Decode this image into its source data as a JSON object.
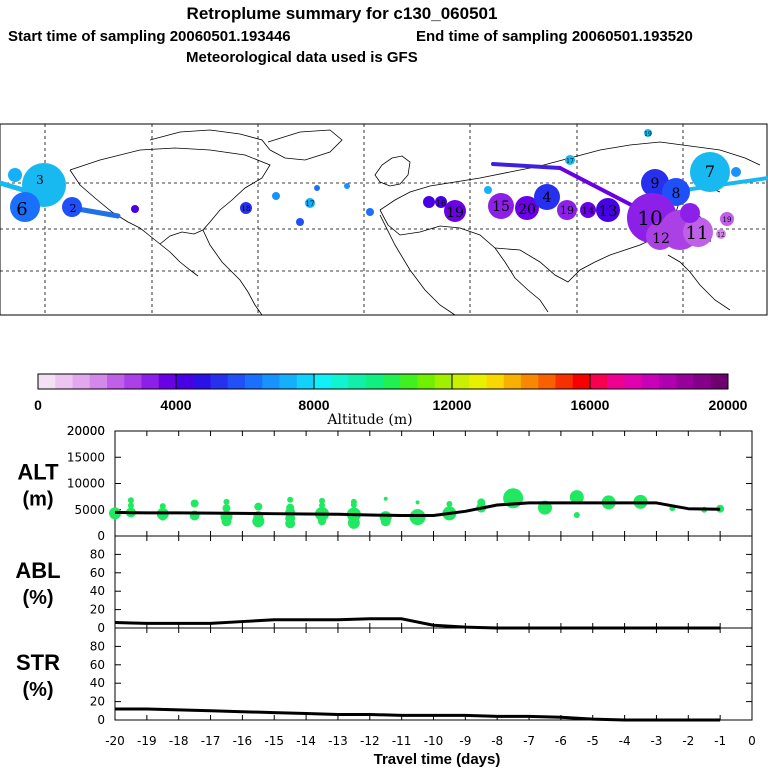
{
  "header": {
    "title": "Retroplume summary for c130_060501",
    "start_label": "Start time of sampling 20060501.193446",
    "end_label": "End time of sampling 20060501.193520",
    "met_label": "Meteorological data used is GFS"
  },
  "colorbar": {
    "ticks": [
      "0",
      "4000",
      "8000",
      "12000",
      "16000",
      "20000"
    ],
    "label": "Altitude (m)",
    "colors": [
      "#f4e0f4",
      "#ecc6f0",
      "#e2a8ee",
      "#d488ea",
      "#c060e8",
      "#aa40e6",
      "#8c20e8",
      "#6a00e6",
      "#4800e4",
      "#2c10e8",
      "#2830f0",
      "#2050f8",
      "#1a70fc",
      "#1892fc",
      "#14b0fc",
      "#10d2fc",
      "#10f0f8",
      "#10f4d0",
      "#10f0a8",
      "#10f080",
      "#20f050",
      "#40f020",
      "#70f000",
      "#a0f000",
      "#c8f000",
      "#e8f000",
      "#f8d800",
      "#f8b000",
      "#f88800",
      "#f86000",
      "#f83000",
      "#f80000",
      "#f80050",
      "#f00090",
      "#e000b0",
      "#c800b8",
      "#b000b0",
      "#98009c",
      "#840088",
      "#700070"
    ]
  },
  "map": {
    "labels": [
      {
        "n": "6",
        "t": "age-label"
      },
      {
        "n": "3",
        "t": "age-label"
      },
      {
        "n": "2",
        "t": "age-label"
      },
      {
        "n": "17",
        "t": "age-label"
      },
      {
        "n": "18",
        "t": "age-label"
      },
      {
        "n": "19",
        "t": "age-label"
      },
      {
        "n": "16",
        "t": "age-label"
      },
      {
        "n": "15",
        "t": "age-label"
      },
      {
        "n": "20",
        "t": "age-label"
      },
      {
        "n": "4",
        "t": "age-label"
      },
      {
        "n": "14",
        "t": "age-label"
      },
      {
        "n": "13",
        "t": "age-label"
      },
      {
        "n": "9",
        "t": "age-label"
      },
      {
        "n": "8",
        "t": "age-label"
      },
      {
        "n": "10",
        "t": "age-label"
      },
      {
        "n": "11",
        "t": "age-label"
      },
      {
        "n": "12",
        "t": "age-label"
      },
      {
        "n": "7",
        "t": "age-label"
      }
    ]
  },
  "chart_data": [
    {
      "type": "line",
      "panel": "ALT",
      "ylabel_line1": "ALT",
      "ylabel_line2": "(m)",
      "ylim": [
        0,
        20000
      ],
      "yticks": [
        "0",
        "5000",
        "10000",
        "15000",
        "20000"
      ],
      "x": [
        -20,
        -19,
        -18,
        -17,
        -16,
        -15,
        -14,
        -13,
        -12,
        -11,
        -10,
        -9,
        -8,
        -7,
        -6,
        -5,
        -4,
        -3,
        -2,
        -1
      ],
      "series": [
        {
          "name": "median altitude",
          "color": "#000000",
          "values": [
            4500,
            4400,
            4400,
            4350,
            4300,
            4250,
            4200,
            4150,
            4000,
            3900,
            3900,
            4700,
            5900,
            6300,
            6300,
            6300,
            6300,
            6300,
            5200,
            5100
          ]
        }
      ],
      "scatter": [
        {
          "x": -20,
          "y": 4300,
          "s": 6
        },
        {
          "x": -19.5,
          "y": 6800,
          "s": 3
        },
        {
          "x": -19.5,
          "y": 5800,
          "s": 3
        },
        {
          "x": -19.5,
          "y": 4500,
          "s": 5
        },
        {
          "x": -18.5,
          "y": 5700,
          "s": 3
        },
        {
          "x": -18.5,
          "y": 4200,
          "s": 6
        },
        {
          "x": -18.5,
          "y": 3500,
          "s": 3
        },
        {
          "x": -17.5,
          "y": 6200,
          "s": 4
        },
        {
          "x": -17.5,
          "y": 3900,
          "s": 5
        },
        {
          "x": -16.5,
          "y": 6500,
          "s": 3
        },
        {
          "x": -16.5,
          "y": 5300,
          "s": 4
        },
        {
          "x": -16.5,
          "y": 3700,
          "s": 6
        },
        {
          "x": -16.5,
          "y": 2800,
          "s": 5
        },
        {
          "x": -15.5,
          "y": 5600,
          "s": 4
        },
        {
          "x": -15.5,
          "y": 3800,
          "s": 5
        },
        {
          "x": -15.5,
          "y": 2800,
          "s": 6
        },
        {
          "x": -14.5,
          "y": 6900,
          "s": 3
        },
        {
          "x": -14.5,
          "y": 5400,
          "s": 4
        },
        {
          "x": -14.5,
          "y": 4500,
          "s": 5
        },
        {
          "x": -14.5,
          "y": 3400,
          "s": 5
        },
        {
          "x": -14.5,
          "y": 2400,
          "s": 5
        },
        {
          "x": -13.5,
          "y": 6700,
          "s": 3
        },
        {
          "x": -13.5,
          "y": 5800,
          "s": 3
        },
        {
          "x": -13.5,
          "y": 4200,
          "s": 7
        },
        {
          "x": -13.5,
          "y": 2800,
          "s": 4
        },
        {
          "x": -12.5,
          "y": 6500,
          "s": 3
        },
        {
          "x": -12.5,
          "y": 5900,
          "s": 3
        },
        {
          "x": -12.5,
          "y": 4100,
          "s": 7
        },
        {
          "x": -12.5,
          "y": 2500,
          "s": 6
        },
        {
          "x": -11.5,
          "y": 7100,
          "s": 2
        },
        {
          "x": -11.5,
          "y": 3600,
          "s": 6
        },
        {
          "x": -11.5,
          "y": 2800,
          "s": 5
        },
        {
          "x": -10.5,
          "y": 6400,
          "s": 2
        },
        {
          "x": -10.5,
          "y": 3600,
          "s": 8
        },
        {
          "x": -9.5,
          "y": 6100,
          "s": 3
        },
        {
          "x": -9.5,
          "y": 4300,
          "s": 7
        },
        {
          "x": -8.5,
          "y": 6400,
          "s": 4
        },
        {
          "x": -8.5,
          "y": 5400,
          "s": 5
        },
        {
          "x": -7.5,
          "y": 7200,
          "s": 10
        },
        {
          "x": -6.5,
          "y": 5400,
          "s": 7
        },
        {
          "x": -5.5,
          "y": 7400,
          "s": 7
        },
        {
          "x": -5.5,
          "y": 4000,
          "s": 3
        },
        {
          "x": -4.5,
          "y": 6400,
          "s": 7
        },
        {
          "x": -3.5,
          "y": 6500,
          "s": 7
        },
        {
          "x": -2.5,
          "y": 5300,
          "s": 3
        },
        {
          "x": -1.5,
          "y": 5000,
          "s": 3
        },
        {
          "x": -1,
          "y": 5200,
          "s": 4
        }
      ]
    },
    {
      "type": "line",
      "panel": "ABL",
      "ylabel_line1": "ABL",
      "ylabel_line2": "(%)",
      "ylim": [
        0,
        100
      ],
      "yticks": [
        "0",
        "20",
        "40",
        "60",
        "80"
      ],
      "x": [
        -20,
        -19,
        -18,
        -17,
        -16,
        -15,
        -14,
        -13,
        -12,
        -11,
        -10,
        -9,
        -8,
        -7,
        -6,
        -5,
        -4,
        -3,
        -2,
        -1
      ],
      "series": [
        {
          "name": "ABL fraction",
          "color": "#000000",
          "values": [
            6,
            5,
            5,
            5,
            7,
            9,
            9,
            9,
            10,
            10,
            3,
            1,
            0,
            0,
            0,
            0,
            0,
            0,
            0,
            0
          ]
        }
      ]
    },
    {
      "type": "line",
      "panel": "STR",
      "ylabel_line1": "STR",
      "ylabel_line2": "(%)",
      "ylim": [
        0,
        100
      ],
      "yticks": [
        "0",
        "20",
        "40",
        "60",
        "80"
      ],
      "xlabel": "Travel time (days)",
      "xticks": [
        "-20",
        "-19",
        "-18",
        "-17",
        "-16",
        "-15",
        "-14",
        "-13",
        "-12",
        "-11",
        "-10",
        "-9",
        "-8",
        "-7",
        "-6",
        "-5",
        "-4",
        "-3",
        "-2",
        "-1",
        "0"
      ],
      "x": [
        -20,
        -19,
        -18,
        -17,
        -16,
        -15,
        -14,
        -13,
        -12,
        -11,
        -10,
        -9,
        -8,
        -7,
        -6,
        -5,
        -4,
        -3,
        -2,
        -1
      ],
      "series": [
        {
          "name": "stratosphere fraction",
          "color": "#000000",
          "values": [
            12,
            12,
            11,
            10,
            9,
            8,
            7,
            6,
            6,
            5,
            5,
            5,
            4,
            4,
            3,
            1,
            0,
            0,
            0,
            0
          ]
        }
      ]
    }
  ]
}
